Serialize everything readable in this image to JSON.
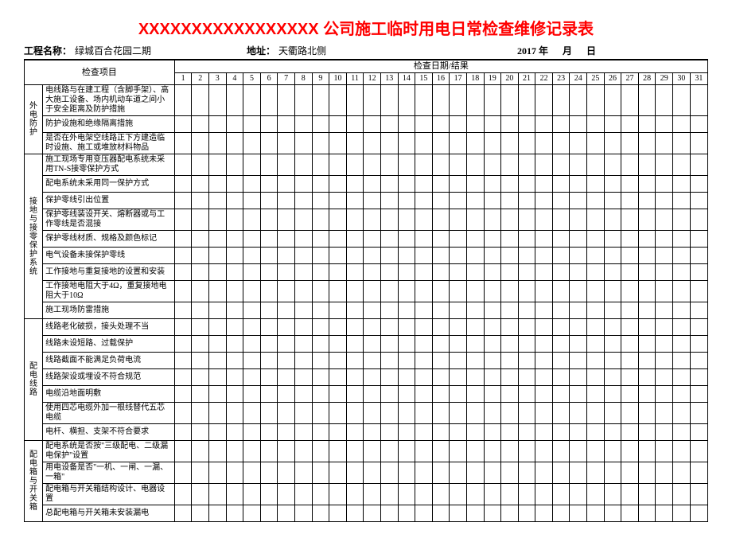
{
  "title": "XXXXXXXXXXXXXXXXX 公司施工临时用电日常检查维修记录表",
  "header": {
    "project_label": "工程名称：",
    "project_value": "绿城百合花园二期",
    "address_label": "地址：",
    "address_value": "天衢路北侧",
    "date_year": "2017",
    "date_unit_year": "年",
    "date_unit_month": "月",
    "date_unit_day": "日"
  },
  "table_headers": {
    "item_header": "检查项目",
    "date_result_header": "检查日期/结果"
  },
  "days": [
    "1",
    "2",
    "3",
    "4",
    "5",
    "6",
    "7",
    "8",
    "9",
    "10",
    "11",
    "12",
    "13",
    "14",
    "15",
    "16",
    "17",
    "18",
    "19",
    "20",
    "21",
    "22",
    "23",
    "24",
    "25",
    "26",
    "27",
    "28",
    "29",
    "30",
    "31"
  ],
  "sections": [
    {
      "category": "外电防护",
      "items": [
        "电线路与在建工程（含脚手架）、高大施工设备、场内机动车道之间小于安全距离及防护措施",
        "防护设施和绝缘隔离措施",
        "是否在外电架空线路正下方建造临时设施、施工或堆放材料物品"
      ]
    },
    {
      "category": "接地与接零保护系统",
      "items": [
        "施工现场专用变压器配电系统未采用TN-S接零保护方式",
        "配电系统未采用同一保护方式",
        "保护零线引出位置",
        "保护零线装设开关、熔断器或与工作零线是否混接",
        "保护零线材质、规格及颜色标记",
        "电气设备未接保护零线",
        "工作接地与重复接地的设置和安装",
        "工作接地电阻大于4Ω，重复接地电阻大于10Ω",
        "施工现场防雷措施"
      ]
    },
    {
      "category": "配电线路",
      "items": [
        "线路老化破损，接头处理不当",
        "线路未设短路、过载保护",
        "线路截面不能满足负荷电流",
        "线路架设或埋设不符合规范",
        "电缆沿地面明敷",
        "使用四芯电缆外加一根线替代五芯电缆",
        "电杆、横担、支架不符合要求"
      ]
    },
    {
      "category": "配电箱与开关箱",
      "items": [
        "配电系统是否按\"三级配电、二级漏电保护\"设置",
        "用电设备是否\"一机、一闸、一漏、一箱\"",
        "配电箱与开关箱结构设计、电器设置",
        "总配电箱与开关箱未安装漏电"
      ]
    }
  ],
  "colors": {
    "title_color": "#ff0000",
    "border_color": "#000000",
    "background": "#ffffff"
  }
}
